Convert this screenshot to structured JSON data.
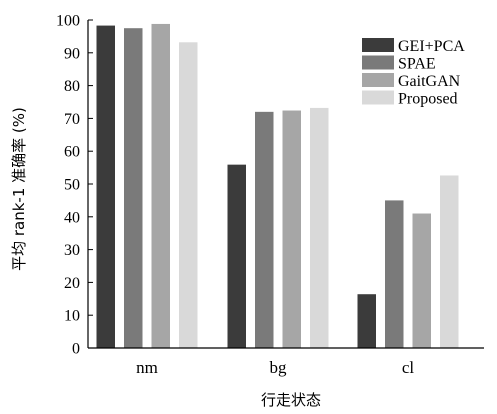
{
  "chart_data": {
    "type": "bar",
    "categories": [
      "nm",
      "bg",
      "cl"
    ],
    "series": [
      {
        "name": "GEI+PCA",
        "values": [
          98.3,
          55.9,
          16.4
        ],
        "color": "#3b3b3b"
      },
      {
        "name": "SPAE",
        "values": [
          97.5,
          72.0,
          45.0
        ],
        "color": "#7a7a7a"
      },
      {
        "name": "GaitGAN",
        "values": [
          98.8,
          72.4,
          41.0
        ],
        "color": "#a6a6a6"
      },
      {
        "name": "Proposed",
        "values": [
          93.2,
          73.2,
          52.6
        ],
        "color": "#d9d9d9"
      }
    ],
    "xlabel": "行走状态",
    "ylabel": "平均 rank-1 准确率 (%)",
    "ylim": [
      0,
      100
    ],
    "yticks": [
      0,
      10,
      20,
      30,
      40,
      50,
      60,
      70,
      80,
      90,
      100
    ],
    "legend_position": "top-right",
    "grid": false
  }
}
